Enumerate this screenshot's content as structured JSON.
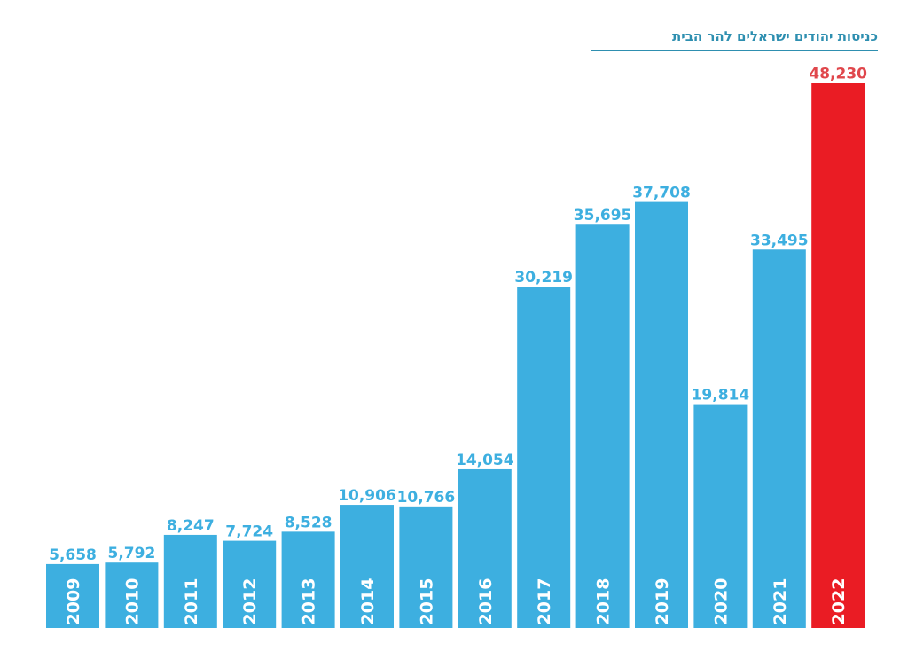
{
  "chart_data": {
    "type": "bar",
    "title": "כניסות יהודים ישראלים להר הבית",
    "categories": [
      "2009",
      "2010",
      "2011",
      "2012",
      "2013",
      "2014",
      "2015",
      "2016",
      "2017",
      "2018",
      "2019",
      "2020",
      "2021",
      "2022"
    ],
    "values": [
      5658,
      5792,
      8247,
      7724,
      8528,
      10906,
      10766,
      14054,
      30219,
      35695,
      37708,
      19814,
      33495,
      48230
    ],
    "value_labels": [
      "5,658",
      "5,792",
      "8,247",
      "7,724",
      "8,528",
      "10,906",
      "10,766",
      "14,054",
      "30,219",
      "35,695",
      "37,708",
      "19,814",
      "33,495",
      "48,230"
    ],
    "ylim": [
      0,
      50000
    ],
    "grid": false,
    "colors": {
      "bar": "#3dafe0",
      "highlight_bar": "#ea1c24",
      "highlight_label": "#e0474c",
      "label": "#3dafe0",
      "title": "#2e8fb0"
    },
    "highlight_category": "2022"
  }
}
